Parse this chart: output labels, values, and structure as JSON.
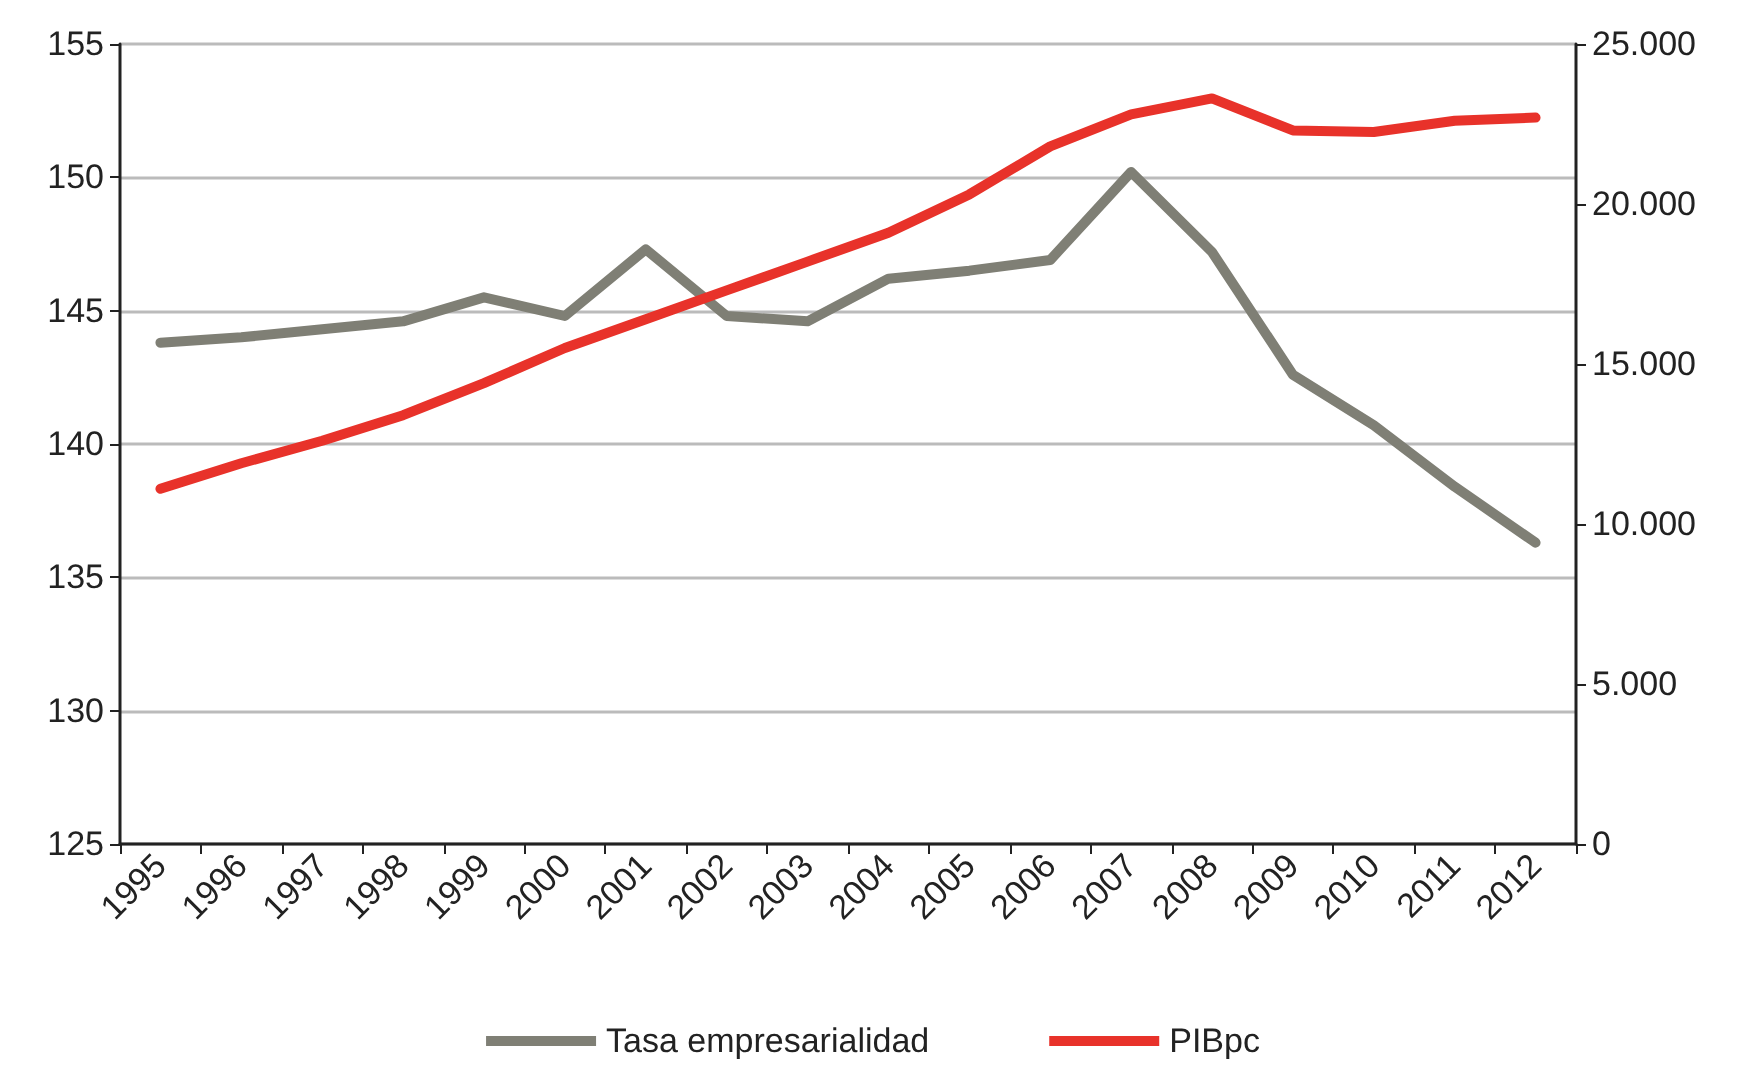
{
  "chart_data": {
    "type": "line",
    "categories": [
      "1995",
      "1996",
      "1997",
      "1998",
      "1999",
      "2000",
      "2001",
      "2002",
      "2003",
      "2004",
      "2005",
      "2006",
      "2007",
      "2008",
      "2009",
      "2010",
      "2011",
      "2012"
    ],
    "series": [
      {
        "name": "Tasa empresarialidad",
        "color": "#7f7f75",
        "values": [
          143.8,
          144.0,
          144.3,
          144.6,
          145.5,
          144.8,
          147.3,
          144.8,
          144.6,
          146.2,
          146.5,
          146.9,
          150.2,
          147.2,
          142.6,
          140.7,
          138.4,
          136.3
        ]
      },
      {
        "name": "PIBpc",
        "color": "#e8322a",
        "axis": "y2",
        "values": [
          11100,
          11900,
          12600,
          13400,
          14400,
          15500,
          16400,
          17300,
          18200,
          19100,
          20300,
          21800,
          22800,
          23300,
          22300,
          22250,
          22600,
          22700
        ]
      }
    ],
    "ylim": [
      125,
      155
    ],
    "yticks": [
      125,
      130,
      135,
      140,
      145,
      150,
      155
    ],
    "y2lim": [
      0,
      25000
    ],
    "y2ticks": [
      {
        "value": 0,
        "label": "0"
      },
      {
        "value": 5000,
        "label": "5.000"
      },
      {
        "value": 10000,
        "label": "10.000"
      },
      {
        "value": 15000,
        "label": "15.000"
      },
      {
        "value": 20000,
        "label": "20.000"
      },
      {
        "value": 25000,
        "label": "25.000"
      }
    ],
    "grid": "y",
    "legend": "bottom",
    "marker": "none",
    "line_style": "solid"
  }
}
